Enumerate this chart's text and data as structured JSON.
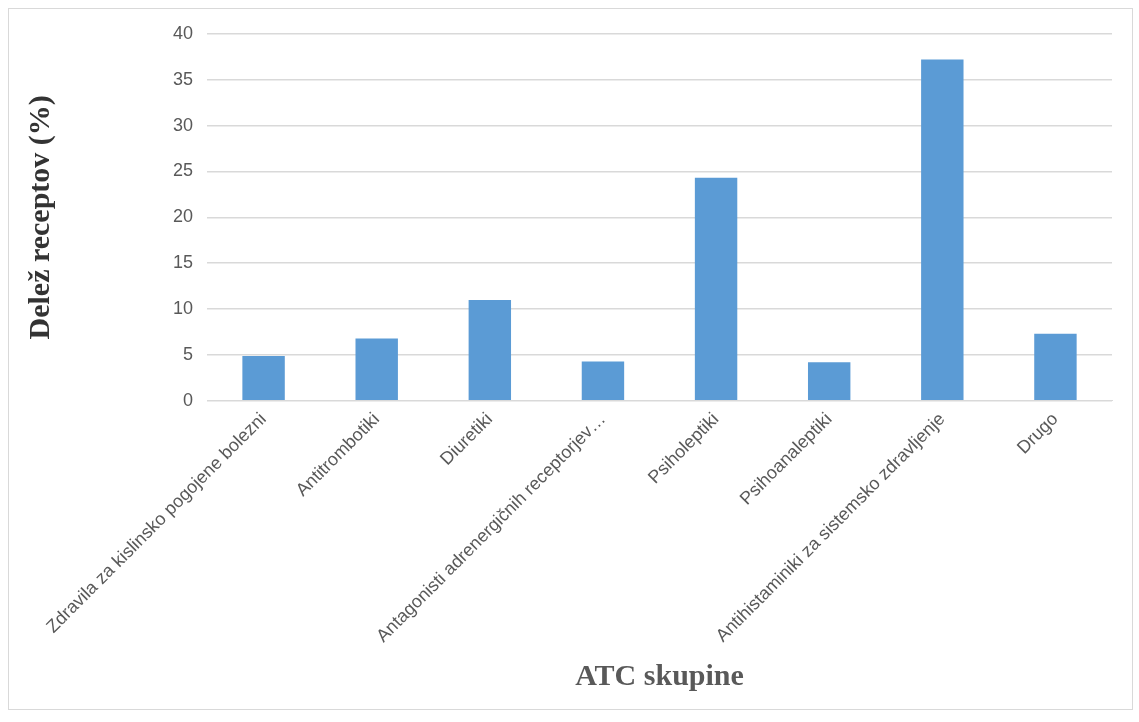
{
  "chart_data": {
    "type": "bar",
    "xlabel": "ATC skupine",
    "ylabel": "Delež receptov (%)",
    "categories": [
      "Zdravila za kislinsko pogojene bolezni",
      "Antitrombotiki",
      "Diuretiki",
      "Antagonisti adrenergičnih receptorjev…",
      "Psiholeptiki",
      "Psihoanaleptiki",
      "Antihistaminiki za sistemsko zdravljenje",
      "Drugo"
    ],
    "values": [
      4.9,
      6.8,
      11.0,
      4.3,
      24.3,
      4.2,
      37.2,
      7.3
    ],
    "color": "#5b9bd5",
    "ylim": [
      0,
      40
    ],
    "yticks": [
      0,
      5,
      10,
      15,
      20,
      25,
      30,
      35,
      40
    ],
    "grid": "y",
    "legend": false
  }
}
